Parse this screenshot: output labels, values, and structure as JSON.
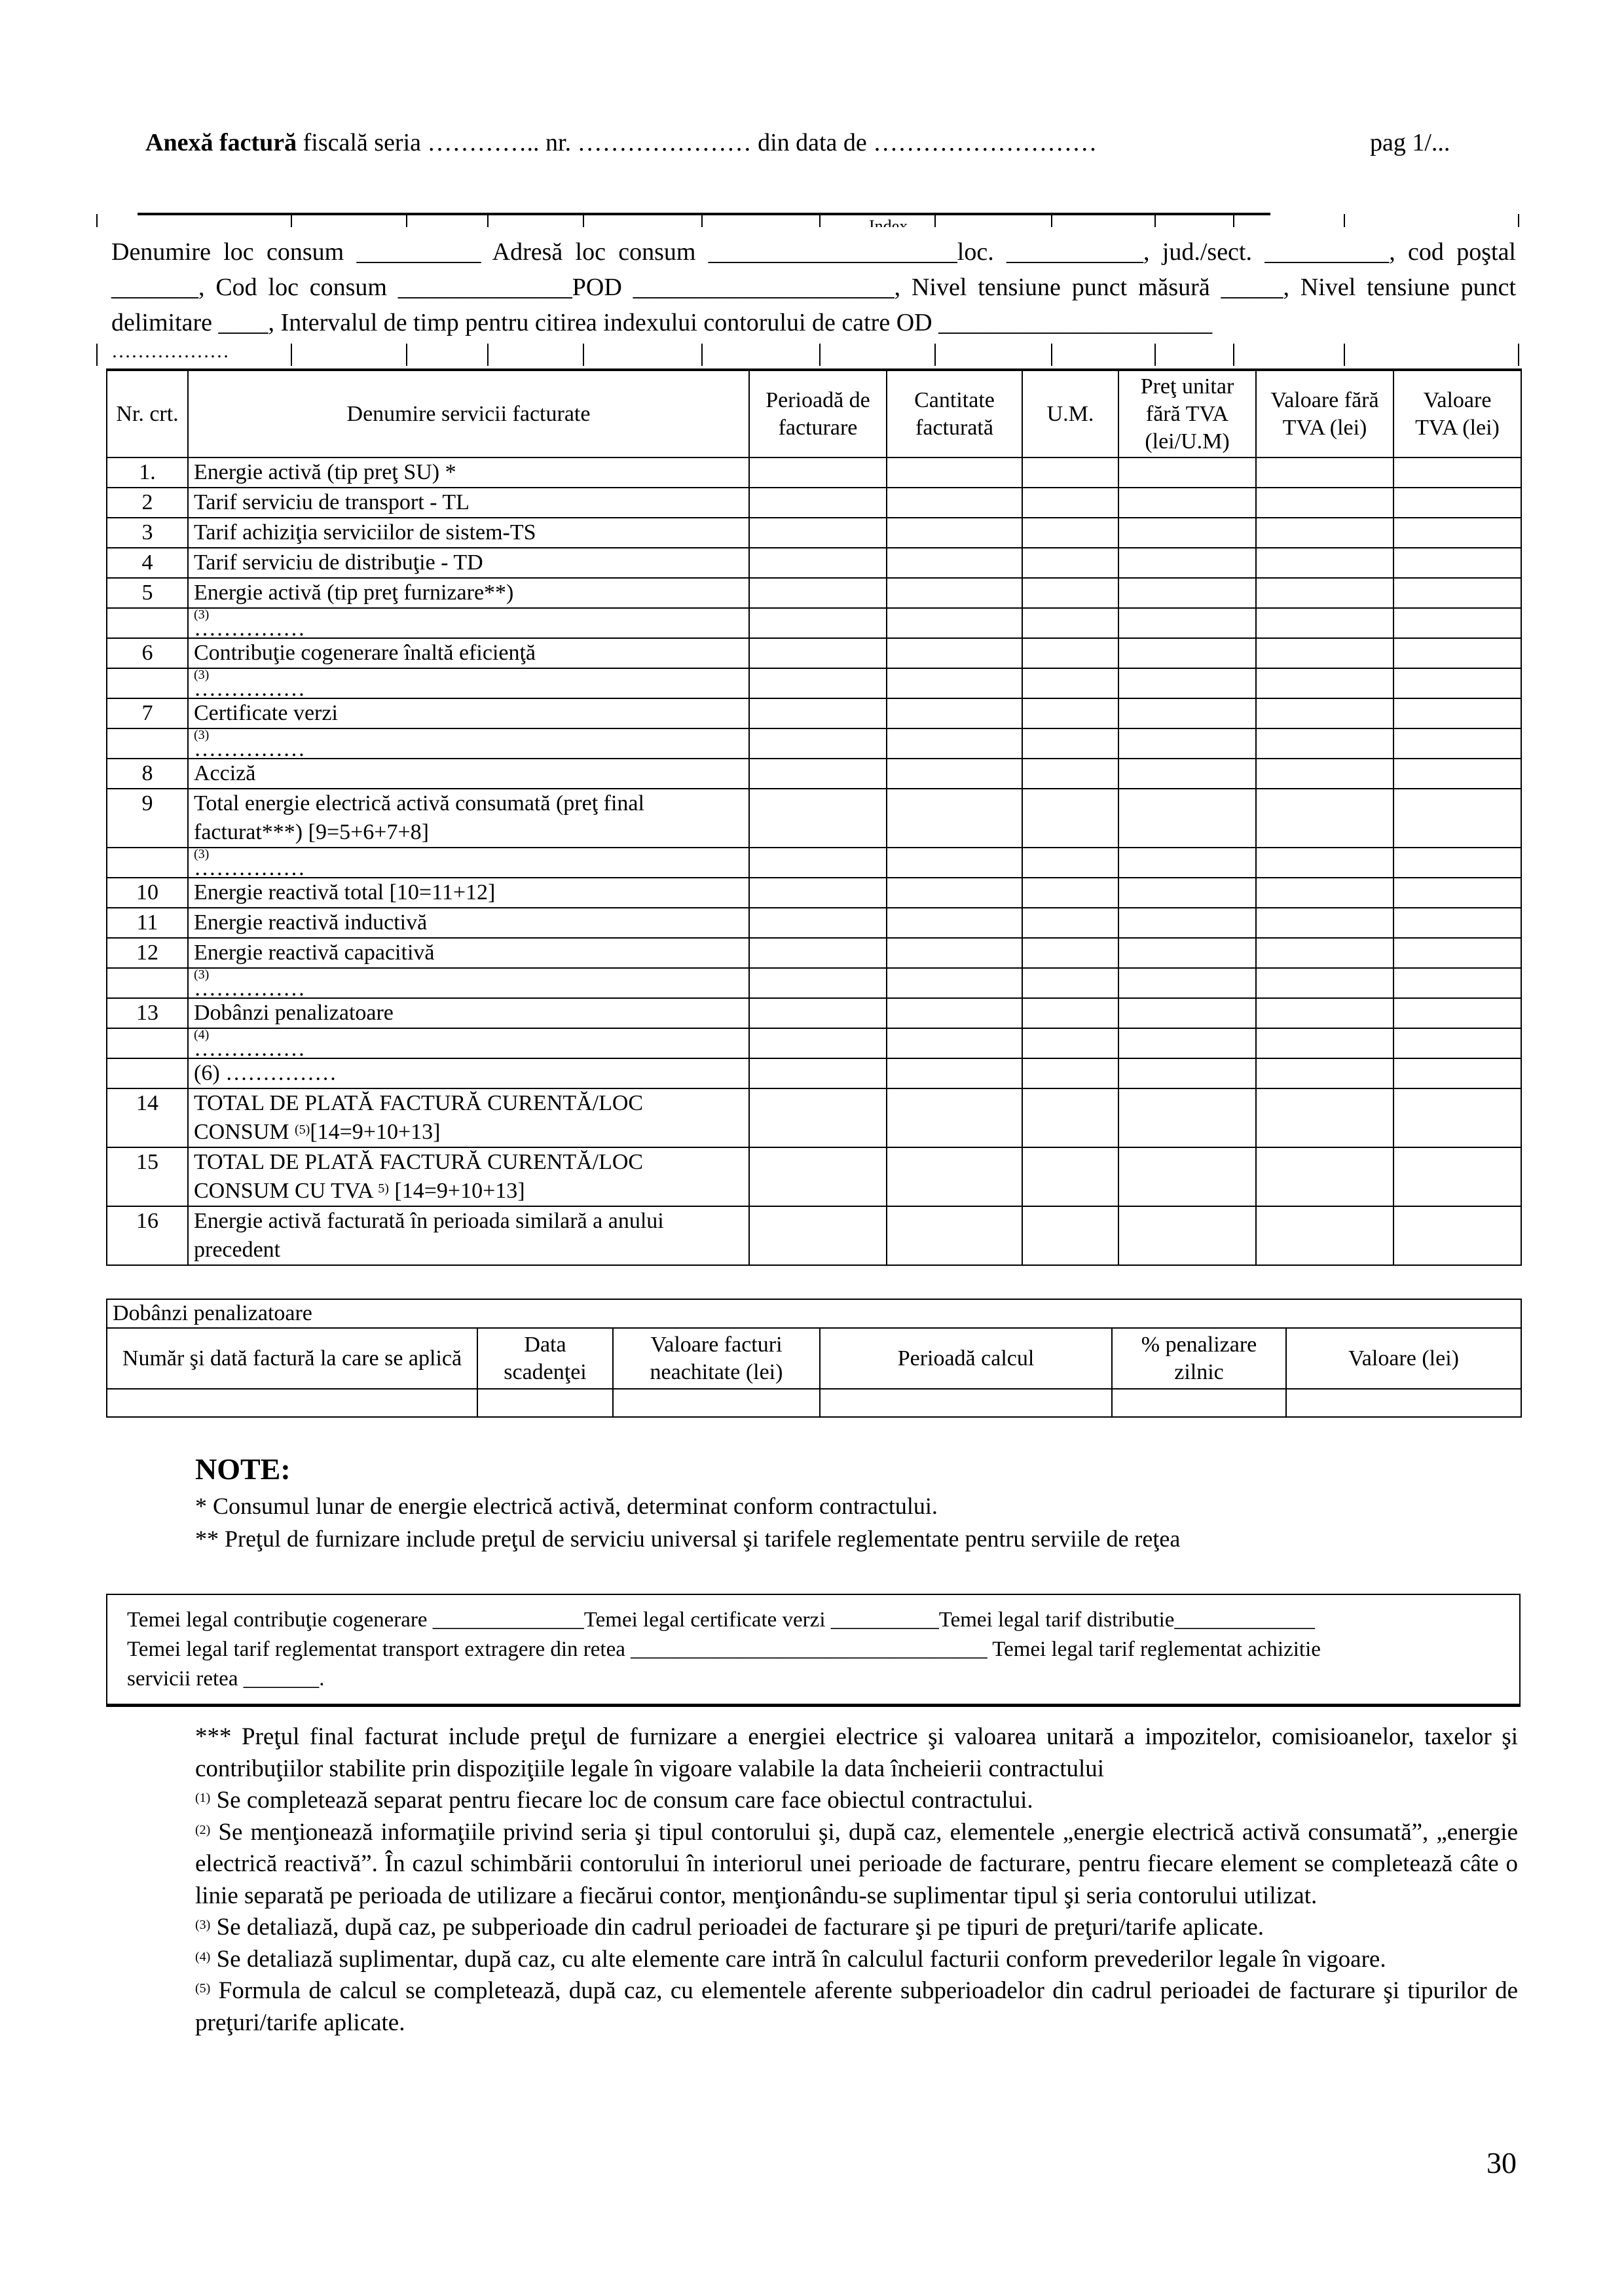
{
  "header": {
    "title_bold": "Anexă factură",
    "title_rest": " fiscală seria ………….. nr. ………………… din data de ………………………",
    "page": "pag 1/..."
  },
  "index_label": "Index",
  "info_text": "Denumire loc consum __________ Adresă loc consum ____________________loc. ___________, jud./sect. __________, cod poştal _______, Cod loc consum ______________POD _____________________, Nivel tensiune punct măsură _____, Nivel tensiune punct delimitare ____, Intervalul de timp pentru citirea indexului contorului de catre OD ______________________",
  "info_dots": "………………",
  "main_table": {
    "headers": [
      "Nr. crt.",
      "Denumire servicii facturate",
      "Perioadă de facturare",
      "Cantitate facturată",
      "U.M.",
      "Preţ unitar fără TVA (lei/U.M)",
      "Valoare fără TVA (lei)",
      "Valoare TVA (lei)"
    ],
    "rows": [
      {
        "nr": "1.",
        "text": "Energie activă (tip preţ SU) *"
      },
      {
        "nr": "2",
        "text": "Tarif serviciu de  transport -  TL"
      },
      {
        "nr": "3",
        "text": "Tarif achiziţia serviciilor de sistem-TS"
      },
      {
        "nr": "4",
        "text": "Tarif serviciu de distribuţie - TD"
      },
      {
        "nr": "5",
        "text": "Energie activă (tip preţ furnizare**)"
      },
      {
        "nr": "",
        "sub": "(3)",
        "text": "……………"
      },
      {
        "nr": "6",
        "text": "Contribuţie cogenerare înaltă eficienţă"
      },
      {
        "nr": "",
        "sub": "(3)",
        "text": "……………"
      },
      {
        "nr": "7",
        "text": "Certificate verzi"
      },
      {
        "nr": "",
        "sub": "(3)",
        "text": "……………"
      },
      {
        "nr": "8",
        "text": "Acciză"
      },
      {
        "nr": "9",
        "text": "Total energie electrică activă consumată (preţ final facturat***) [9=5+6+7+8]",
        "tall": true
      },
      {
        "nr": "",
        "sub": "(3)",
        "text": "……………"
      },
      {
        "nr": "10",
        "text": "Energie reactivă total [10=11+12]"
      },
      {
        "nr": "11",
        "text": "Energie reactivă inductivă"
      },
      {
        "nr": "12",
        "text": "Energie reactivă capacitivă"
      },
      {
        "nr": "",
        "sub": "(3)",
        "text": "……………"
      },
      {
        "nr": "13",
        "text": "Dobânzi penalizatoare"
      },
      {
        "nr": "",
        "sub": "(4)",
        "text": "……………"
      },
      {
        "nr": "",
        "text": "(6) ……………"
      },
      {
        "nr": "14",
        "text": "TOTAL DE PLATĂ FACTURĂ CURENTĂ/LOC CONSUM ",
        "sup": "(5)",
        "text2": "[14=9+10+13]",
        "tall": true
      },
      {
        "nr": "15",
        "text": "TOTAL DE PLATĂ FACTURĂ CURENTĂ/LOC CONSUM CU TVA ",
        "sup": "5)",
        "text2": " [14=9+10+13]",
        "tall": true
      },
      {
        "nr": "16",
        "text": "Energie activă facturată în perioada similară a anului precedent",
        "tall": true
      }
    ]
  },
  "dobanzi_table": {
    "title": "Dobânzi penalizatoare",
    "headers": [
      "Număr şi dată factură la care se aplică",
      "Data scadenţei",
      "Valoare facturi neachitate (lei)",
      "Perioadă calcul",
      "% penalizare zilnic",
      "Valoare  (lei)"
    ]
  },
  "notes": {
    "title": "NOTE:",
    "lines": [
      "* Consumul lunar de energie electrică activă, determinat conform contractului.",
      "** Preţul de furnizare include preţul de serviciu universal şi tarifele reglementate pentru serviile de reţea"
    ]
  },
  "temei": [
    "Temei legal contribuţie cogenerare ______________Temei legal certificate verzi __________Temei legal tarif distributie_____________",
    "Temei legal tarif reglementat transport extragere din retea _________________________________ Temei legal tarif reglementat achizitie",
    "servicii retea _______."
  ],
  "footnotes": [
    {
      "sup": "",
      "text": "*** Preţul final facturat include preţul de furnizare a energiei electrice şi valoarea unitară a impozitelor, comisioanelor, taxelor şi contribuţiilor stabilite prin dispoziţiile legale în vigoare valabile la data încheierii contractului"
    },
    {
      "sup": "(1)",
      "text": " Se completează separat pentru fiecare loc de consum care face obiectul contractului."
    },
    {
      "sup": "(2)",
      "text": " Se menţionează informaţiile privind seria şi tipul contorului şi, după caz, elementele „energie electrică activă consumată”, „energie electrică reactivă”. În cazul schimbării contorului în interiorul unei perioade de facturare, pentru fiecare element se completează câte o linie separată pe perioada de utilizare a fiecărui contor, menţionându-se suplimentar tipul şi seria contorului utilizat."
    },
    {
      "sup": "(3)",
      "text": " Se detaliază, după caz, pe subperioade din cadrul perioadei de facturare şi pe tipuri de preţuri/tarife aplicate."
    },
    {
      "sup": "(4)",
      "text": " Se detaliază suplimentar, după caz, cu alte elemente care intră în calculul facturii conform prevederilor legale în vigoare."
    },
    {
      "sup": "(5)",
      "text": " Formula de calcul se completează, după caz, cu elementele aferente subperioadelor din cadrul perioadei de facturare şi tipurilor de preţuri/tarife aplicate."
    }
  ],
  "page_number": "30"
}
